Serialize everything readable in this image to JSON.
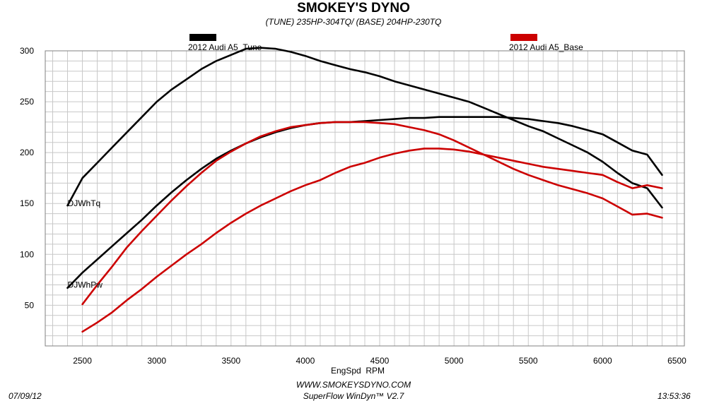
{
  "header": {
    "title": "SMOKEY'S DYNO",
    "subtitle": "(TUNE) 235HP-304TQ/ (BASE) 204HP-230TQ"
  },
  "legend": [
    {
      "label": "2012 Audi A5_Tune",
      "color": "#000000"
    },
    {
      "label": "2012 Audi A5_Base",
      "color": "#cc0000"
    }
  ],
  "footer": {
    "date": "07/09/12",
    "website": "WWW.SMOKEYSDYNO.COM",
    "software": "SuperFlow WinDyn™ V2.7",
    "time": "13:53:36"
  },
  "chart_data": {
    "type": "line",
    "xlabel": "EngSpd  RPM",
    "ylabel": "",
    "xlim": [
      2250,
      6550
    ],
    "ylim": [
      10,
      300
    ],
    "x_ticks": [
      2500,
      3000,
      3500,
      4000,
      4500,
      5000,
      5500,
      6000,
      6500
    ],
    "y_ticks": [
      50,
      100,
      150,
      200,
      250,
      300
    ],
    "grid": true,
    "legend_position": "top",
    "curve_labels": [
      {
        "text": "DJWhTq",
        "x": 2400,
        "y": 150
      },
      {
        "text": "DJWhPw",
        "x": 2400,
        "y": 70
      }
    ],
    "series": [
      {
        "name": "2012 Audi A5_Tune",
        "quantity": "DJWhTq",
        "color": "#000000",
        "x": [
          2400,
          2500,
          2600,
          2700,
          2800,
          2900,
          3000,
          3100,
          3200,
          3300,
          3400,
          3500,
          3600,
          3700,
          3800,
          3900,
          4000,
          4100,
          4200,
          4300,
          4400,
          4500,
          4600,
          4700,
          4800,
          4900,
          5000,
          5100,
          5200,
          5300,
          5400,
          5500,
          5600,
          5700,
          5800,
          5900,
          6000,
          6100,
          6200,
          6300,
          6400
        ],
        "y": [
          148,
          175,
          190,
          205,
          220,
          235,
          250,
          262,
          272,
          282,
          290,
          296,
          302,
          303,
          302,
          299,
          295,
          290,
          286,
          282,
          279,
          275,
          270,
          266,
          262,
          258,
          254,
          250,
          244,
          238,
          232,
          226,
          221,
          214,
          207,
          200,
          191,
          180,
          170,
          165,
          146
        ]
      },
      {
        "name": "2012 Audi A5_Tune",
        "quantity": "DJWhPw",
        "color": "#000000",
        "x": [
          2400,
          2500,
          2600,
          2700,
          2800,
          2900,
          3000,
          3100,
          3200,
          3300,
          3400,
          3500,
          3600,
          3700,
          3800,
          3900,
          4000,
          4100,
          4200,
          4300,
          4400,
          4500,
          4600,
          4700,
          4800,
          4900,
          5000,
          5100,
          5200,
          5300,
          5400,
          5500,
          5600,
          5700,
          5800,
          5900,
          6000,
          6100,
          6200,
          6300,
          6400
        ],
        "y": [
          67,
          82,
          95,
          108,
          121,
          134,
          148,
          161,
          173,
          184,
          194,
          202,
          209,
          215,
          220,
          224,
          227,
          229,
          230,
          230,
          231,
          232,
          233,
          234,
          234,
          235,
          235,
          235,
          235,
          235,
          234,
          233,
          231,
          229,
          226,
          222,
          218,
          210,
          202,
          198,
          178
        ]
      },
      {
        "name": "2012 Audi A5_Base",
        "quantity": "DJWhTq",
        "color": "#cc0000",
        "x": [
          2500,
          2600,
          2700,
          2800,
          2900,
          3000,
          3100,
          3200,
          3300,
          3400,
          3500,
          3600,
          3700,
          3800,
          3900,
          4000,
          4100,
          4200,
          4300,
          4400,
          4500,
          4600,
          4700,
          4800,
          4900,
          5000,
          5100,
          5200,
          5300,
          5400,
          5500,
          5600,
          5700,
          5800,
          5900,
          6000,
          6100,
          6200,
          6300,
          6400
        ],
        "y": [
          51,
          70,
          88,
          107,
          123,
          138,
          153,
          167,
          180,
          192,
          201,
          209,
          216,
          221,
          225,
          227,
          229,
          230,
          230,
          230,
          229,
          228,
          225,
          222,
          218,
          212,
          205,
          198,
          191,
          184,
          178,
          173,
          168,
          164,
          160,
          155,
          147,
          139,
          140,
          136
        ]
      },
      {
        "name": "2012 Audi A5_Base",
        "quantity": "DJWhPw",
        "color": "#cc0000",
        "x": [
          2500,
          2600,
          2700,
          2800,
          2900,
          3000,
          3100,
          3200,
          3300,
          3400,
          3500,
          3600,
          3700,
          3800,
          3900,
          4000,
          4100,
          4200,
          4300,
          4400,
          4500,
          4600,
          4700,
          4800,
          4900,
          5000,
          5100,
          5200,
          5300,
          5400,
          5500,
          5600,
          5700,
          5800,
          5900,
          6000,
          6100,
          6200,
          6300,
          6400
        ],
        "y": [
          24,
          33,
          43,
          55,
          66,
          78,
          89,
          100,
          110,
          121,
          131,
          140,
          148,
          155,
          162,
          168,
          173,
          180,
          186,
          190,
          195,
          199,
          202,
          204,
          204,
          203,
          201,
          198,
          195,
          192,
          189,
          186,
          184,
          182,
          180,
          178,
          171,
          165,
          168,
          165
        ]
      }
    ]
  }
}
